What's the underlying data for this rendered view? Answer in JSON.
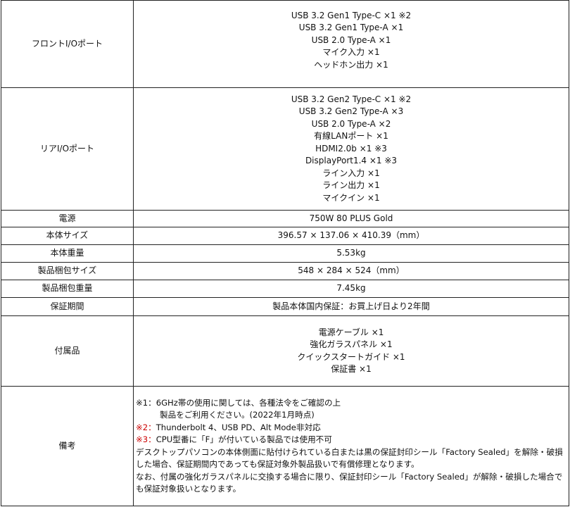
{
  "rows": {
    "front_io": {
      "label": "フロントI/Oポート",
      "values": [
        "USB 3.2 Gen1 Type-C ×1 ※2",
        "USB 3.2 Gen1 Type-A ×1",
        "USB 2.0 Type-A ×1",
        "マイク入力 ×1",
        "ヘッドホン出力 ×1"
      ]
    },
    "rear_io": {
      "label": "リアI/Oポート",
      "values": [
        "USB 3.2 Gen2 Type-C ×1 ※2",
        "USB 3.2 Gen2 Type-A ×3",
        "USB 2.0 Type-A ×2",
        "有線LANポート ×1",
        "HDMI2.0b ×1 ※3",
        "DisplayPort1.4 ×1 ※3",
        "ライン入力 ×1",
        "ライン出力 ×1",
        "マイクイン ×1"
      ]
    },
    "power": {
      "label": "電源",
      "value": "750W 80 PLUS Gold"
    },
    "size": {
      "label": "本体サイズ",
      "value": "396.57 × 137.06 × 410.39（mm）"
    },
    "weight": {
      "label": "本体重量",
      "value": "5.53kg"
    },
    "pkg_size": {
      "label": "製品梱包サイズ",
      "value": "548 × 284 × 524（mm）"
    },
    "pkg_weight": {
      "label": "製品梱包重量",
      "value": "7.45kg"
    },
    "warranty": {
      "label": "保証期間",
      "value": "製品本体国内保証：お買上げ日より2年間"
    },
    "accessories": {
      "label": "付属品",
      "values": [
        "電源ケーブル ×1",
        "強化ガラスパネル ×1",
        "クイックスタートガイド ×1",
        "保証書 ×1"
      ]
    },
    "notes": {
      "label": "備考",
      "note1_mark": "※1：",
      "note1_a": "6GHz帯の使用に関しては、各種法令をご確認の上",
      "note1_b": "製品をご利用ください。(2022年1月時点)",
      "note2_mark": "※2：",
      "note2": "Thunderbolt 4、USB PD、Alt Mode非対応",
      "note3_mark": "※3：",
      "note3": "CPU型番に「F」が付いている製品では使用不可",
      "para1": "デスクトップパソコンの本体側面に貼付けられている白または黒の保証封印シール「Factory Sealed」を解除・破損した場合、保証期間内であっても保証対象外製品扱いで有償修理となります。",
      "para2": "なお、付属の強化ガラスパネルに交換する場合に限り、保証封印シール「Factory Sealed」が解除・破損した場合でも保証対象扱いとなります。"
    },
    "note_mark_color": "#cc0000"
  }
}
